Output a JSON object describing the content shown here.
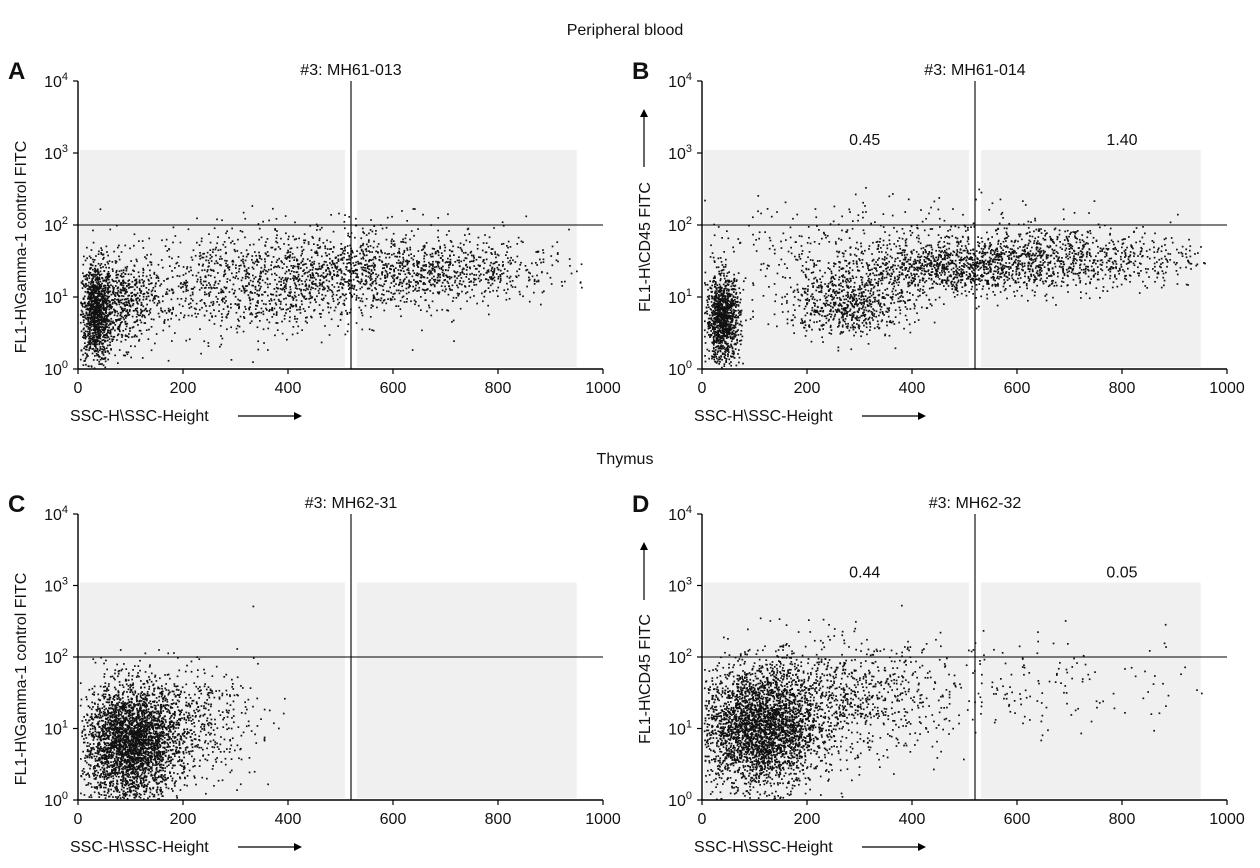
{
  "figure": {
    "section_titles": [
      "Peripheral blood",
      "Thymus"
    ]
  },
  "chart_data": [
    {
      "type": "scatter",
      "panel_letter": "A",
      "title": "#3: MH61-013",
      "xlabel": "SSC-H\\SSC-Height",
      "ylabel": "FL1-H\\Gamma-1 control FITC",
      "xlim": [
        0,
        1000
      ],
      "ylim": [
        1,
        10000
      ],
      "y_scale": "log",
      "x_ticks": [
        0,
        200,
        400,
        600,
        800,
        1000
      ],
      "y_ticks": [
        {
          "base": "10",
          "exp": "0"
        },
        {
          "base": "10",
          "exp": "1"
        },
        {
          "base": "10",
          "exp": "2"
        },
        {
          "base": "10",
          "exp": "3"
        },
        {
          "base": "10",
          "exp": "4"
        }
      ],
      "quadrant_gate": {
        "x": 520,
        "y": 100
      },
      "quadrant_labels": [],
      "x_arrow": true,
      "y_arrow": false,
      "clusters": [
        {
          "cx": 35,
          "cy": 6,
          "sx": 15,
          "sy": 0.35,
          "n": 1100
        },
        {
          "cx": 90,
          "cy": 8,
          "sx": 30,
          "sy": 0.3,
          "n": 450
        },
        {
          "cx": 320,
          "cy": 12,
          "sx": 140,
          "sy": 0.32,
          "n": 900
        },
        {
          "cx": 620,
          "cy": 22,
          "sx": 150,
          "sy": 0.22,
          "n": 1100
        },
        {
          "cx": 500,
          "cy": 40,
          "sx": 200,
          "sy": 0.28,
          "n": 400
        }
      ]
    },
    {
      "type": "scatter",
      "panel_letter": "B",
      "title": "#3: MH61-014",
      "xlabel": "SSC-H\\SSC-Height",
      "ylabel": "FL1-H\\CD45 FITC",
      "xlim": [
        0,
        1000
      ],
      "ylim": [
        1,
        10000
      ],
      "y_scale": "log",
      "x_ticks": [
        0,
        200,
        400,
        600,
        800,
        1000
      ],
      "y_ticks": [
        {
          "base": "10",
          "exp": "0"
        },
        {
          "base": "10",
          "exp": "1"
        },
        {
          "base": "10",
          "exp": "2"
        },
        {
          "base": "10",
          "exp": "3"
        },
        {
          "base": "10",
          "exp": "4"
        }
      ],
      "quadrant_gate": {
        "x": 520,
        "y": 100
      },
      "quadrant_labels": [
        {
          "text": "0.45",
          "x": 310,
          "y": 1300
        },
        {
          "text": "1.40",
          "x": 800,
          "y": 1300
        }
      ],
      "x_arrow": true,
      "y_arrow": true,
      "clusters": [
        {
          "cx": 40,
          "cy": 5,
          "sx": 16,
          "sy": 0.3,
          "n": 1100
        },
        {
          "cx": 280,
          "cy": 8,
          "sx": 60,
          "sy": 0.22,
          "n": 700
        },
        {
          "cx": 480,
          "cy": 25,
          "sx": 120,
          "sy": 0.18,
          "n": 1100
        },
        {
          "cx": 700,
          "cy": 35,
          "sx": 130,
          "sy": 0.22,
          "n": 700
        },
        {
          "cx": 400,
          "cy": 60,
          "sx": 200,
          "sy": 0.3,
          "n": 400
        }
      ]
    },
    {
      "type": "scatter",
      "panel_letter": "C",
      "title": "#3: MH62-31",
      "xlabel": "SSC-H\\SSC-Height",
      "ylabel": "FL1-H\\Gamma-1 control FITC",
      "xlim": [
        0,
        1000
      ],
      "ylim": [
        1,
        10000
      ],
      "y_scale": "log",
      "x_ticks": [
        0,
        200,
        400,
        600,
        800,
        1000
      ],
      "y_ticks": [
        {
          "base": "10",
          "exp": "0"
        },
        {
          "base": "10",
          "exp": "1"
        },
        {
          "base": "10",
          "exp": "2"
        },
        {
          "base": "10",
          "exp": "3"
        },
        {
          "base": "10",
          "exp": "4"
        }
      ],
      "quadrant_gate": {
        "x": 520,
        "y": 100
      },
      "quadrant_labels": [],
      "x_arrow": true,
      "y_arrow": false,
      "clusters": [
        {
          "cx": 100,
          "cy": 6,
          "sx": 45,
          "sy": 0.4,
          "n": 3000
        },
        {
          "cx": 200,
          "cy": 12,
          "sx": 70,
          "sy": 0.38,
          "n": 600
        }
      ]
    },
    {
      "type": "scatter",
      "panel_letter": "D",
      "title": "#3: MH62-32",
      "xlabel": "SSC-H\\SSC-Height",
      "ylabel": "FL1-H\\CD45 FITC",
      "xlim": [
        0,
        1000
      ],
      "ylim": [
        1,
        10000
      ],
      "y_scale": "log",
      "x_ticks": [
        0,
        200,
        400,
        600,
        800,
        1000
      ],
      "y_ticks": [
        {
          "base": "10",
          "exp": "0"
        },
        {
          "base": "10",
          "exp": "1"
        },
        {
          "base": "10",
          "exp": "2"
        },
        {
          "base": "10",
          "exp": "3"
        },
        {
          "base": "10",
          "exp": "4"
        }
      ],
      "quadrant_gate": {
        "x": 520,
        "y": 100
      },
      "quadrant_labels": [
        {
          "text": "0.44",
          "x": 310,
          "y": 1300
        },
        {
          "text": "0.05",
          "x": 800,
          "y": 1300
        }
      ],
      "x_arrow": true,
      "y_arrow": true,
      "clusters": [
        {
          "cx": 110,
          "cy": 10,
          "sx": 55,
          "sy": 0.42,
          "n": 3000
        },
        {
          "cx": 260,
          "cy": 25,
          "sx": 100,
          "sy": 0.4,
          "n": 900
        },
        {
          "cx": 620,
          "cy": 40,
          "sx": 180,
          "sy": 0.35,
          "n": 200
        }
      ]
    }
  ]
}
